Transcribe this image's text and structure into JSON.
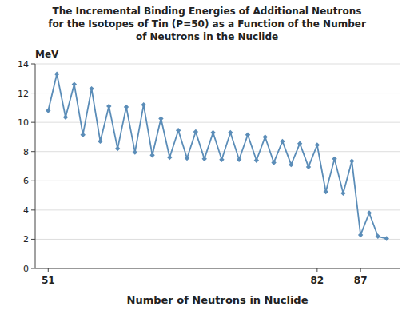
{
  "chart_data": {
    "type": "line",
    "title": "The Incremental Binding Energies of Additional Neutrons\nfor the Isotopes of Tin (P=50) as a Function of the Number\nof Neutrons in the Nuclide",
    "x_label": "Number of Neutrons in Nuclide",
    "y_label": "MeV",
    "x": [
      51,
      52,
      53,
      54,
      55,
      56,
      57,
      58,
      59,
      60,
      61,
      62,
      63,
      64,
      65,
      66,
      67,
      68,
      69,
      70,
      71,
      72,
      73,
      74,
      75,
      76,
      77,
      78,
      79,
      80,
      81,
      82,
      83,
      84,
      85,
      86,
      87,
      88,
      89,
      90
    ],
    "values": [
      10.8,
      13.3,
      10.35,
      12.6,
      9.15,
      12.3,
      8.7,
      11.1,
      8.2,
      11.05,
      7.95,
      11.2,
      7.75,
      10.25,
      7.6,
      9.45,
      7.55,
      9.35,
      7.5,
      9.3,
      7.45,
      9.3,
      7.45,
      9.15,
      7.4,
      9.0,
      7.25,
      8.7,
      7.1,
      8.55,
      6.95,
      8.45,
      5.25,
      7.5,
      5.15,
      7.35,
      2.3,
      3.8,
      2.2,
      2.05
    ],
    "color": "#5b8db8",
    "marker": "diamond",
    "xlim": [
      49.5,
      91.5
    ],
    "ylim": [
      0,
      14
    ],
    "xticks": [
      51,
      82,
      87
    ],
    "yticks": [
      0,
      2,
      4,
      6,
      8,
      10,
      12,
      14
    ],
    "grid": "y"
  }
}
